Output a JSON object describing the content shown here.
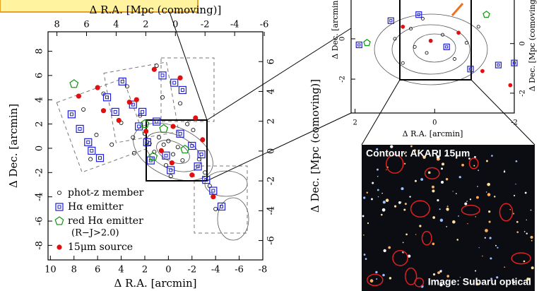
{
  "chart_data": [
    {
      "type": "scatter",
      "xlabel": "Δ R.A. [arcmin]",
      "x2label": "Δ R.A. [Mpc (comoving)]",
      "ylabel": "Δ Dec. [arcmin]",
      "y2label": "Δ Dec. [Mpc (comoving)]",
      "xlim": [
        10.2,
        -8.0
      ],
      "xticks": [
        10,
        8,
        6,
        4,
        2,
        0,
        -2,
        -4,
        -6,
        -8
      ],
      "x2lim": [
        8.6,
        -5.9
      ],
      "x2ticks": [
        8,
        6,
        4,
        2,
        0,
        -2,
        -4,
        -6
      ],
      "ylim": [
        -9.2,
        9.6
      ],
      "yticks": [
        -8,
        -6,
        -4,
        -2,
        0,
        2,
        4,
        6,
        8
      ],
      "y2lim": [
        -7.3,
        8.0
      ],
      "y2ticks": [
        -6,
        -4,
        -2,
        0,
        2,
        4,
        6
      ],
      "legend": "lower left",
      "legend_note": "(R−J>2.0)",
      "series": [
        {
          "name": "phot-z member",
          "color": "#000000",
          "marker": "circle",
          "x": [
            7.2,
            6.1,
            5.5,
            4.8,
            4.0,
            3.5,
            3.0,
            2.4,
            2.0,
            1.6,
            1.2,
            0.8,
            0.4,
            0.0,
            -0.4,
            -0.8,
            -1.2,
            -1.6,
            -2.1,
            -2.6,
            -3.1,
            -3.5,
            -4.0,
            1.0,
            0.5,
            -0.2,
            0.2,
            -1.0,
            6.6,
            2.9
          ],
          "values": [
            3.2,
            1.1,
            4.5,
            0.3,
            2.1,
            5.1,
            0.9,
            2.7,
            1.2,
            0.4,
            -0.3,
            0.9,
            0.3,
            0.6,
            -0.5,
            0.1,
            -1.0,
            2.0,
            1.5,
            -0.9,
            -2.0,
            -3.1,
            -5.0,
            6.8,
            4.2,
            -2.3,
            -1.4,
            3.7,
            -0.9,
            -0.4
          ]
        },
        {
          "name": "Hα emitter",
          "color": "#1f1fd0",
          "marker": "square",
          "x": [
            8.2,
            7.5,
            6.8,
            5.2,
            4.5,
            3.9,
            3.0,
            2.5,
            1.8,
            1.0,
            0.5,
            -0.5,
            -1.2,
            -2.0,
            -2.5,
            -3.2,
            -3.8,
            -4.5,
            0.2,
            1.5,
            -1.0,
            5.8,
            6.5,
            2.2,
            -0.2,
            -2.8
          ],
          "values": [
            2.8,
            1.6,
            0.5,
            4.2,
            3.0,
            5.5,
            3.6,
            1.8,
            0.5,
            2.2,
            6.0,
            5.4,
            4.8,
            0.2,
            -1.5,
            -2.6,
            -3.5,
            -4.8,
            -0.6,
            -1.0,
            1.2,
            -0.8,
            -0.2,
            3.0,
            -1.8,
            -0.5
          ]
        },
        {
          "name": "red Hα emitter",
          "color": "#1a9a1a",
          "marker": "pentagon",
          "x": [
            8.0,
            1.3,
            0.4,
            -1.4,
            2.0
          ],
          "values": [
            5.3,
            -0.7,
            1.6,
            -0.1,
            2.0
          ]
        },
        {
          "name": "15μm source",
          "color": "#e01010",
          "marker": "dot",
          "x": [
            7.6,
            6.0,
            4.2,
            2.7,
            1.2,
            -0.4,
            -1.0,
            -2.3,
            -2.9,
            -3.8,
            0.6,
            1.9,
            3.3,
            -0.3,
            -2.0,
            5.5
          ],
          "values": [
            4.3,
            5.0,
            2.3,
            4.0,
            6.5,
            1.8,
            5.8,
            2.5,
            0.7,
            -4.0,
            -0.2,
            1.4,
            3.8,
            -1.2,
            -2.2,
            3.1
          ]
        }
      ]
    },
    {
      "type": "scatter",
      "xlabel": "Δ R.A. [arcmin]",
      "ylabel": "Δ Dec. [arcmin]",
      "y2label": "Δ Dec. [Mpc (comoving)]",
      "xlim": [
        2.1,
        -2.0
      ],
      "xticks": [
        2,
        0,
        -2
      ],
      "ylim": [
        -3.68,
        2.1
      ],
      "yticks": [
        -2,
        0
      ],
      "y2lim": [
        -2.8,
        1.9
      ],
      "y2ticks": [
        -2,
        0
      ],
      "series": [
        {
          "color": "#000000",
          "marker": "circle",
          "x": [
            1.0,
            0.6,
            0.2,
            -0.2,
            -0.5,
            0.8,
            0.3,
            -0.8,
            -1.1,
            0.5
          ],
          "values": [
            0.0,
            0.5,
            -0.7,
            0.2,
            -1.0,
            -1.2,
            1.0,
            -0.2,
            0.6,
            -0.4
          ]
        },
        {
          "color": "#1f1fd0",
          "marker": "square",
          "x": [
            1.1,
            0.4,
            -0.3,
            -0.9,
            -1.6,
            -2.0,
            1.9
          ],
          "values": [
            0.9,
            1.2,
            -0.4,
            -1.5,
            -1.3,
            -1.2,
            -0.3
          ]
        },
        {
          "color": "#1a9a1a",
          "marker": "pentagon",
          "x": [
            1.7,
            -1.3
          ],
          "values": [
            -0.2,
            1.2
          ]
        },
        {
          "color": "#e01010",
          "marker": "dot",
          "x": [
            0.8,
            0.1,
            -0.6,
            -1.2,
            -1.9
          ],
          "values": [
            0.6,
            -0.1,
            0.3,
            -1.6,
            -2.3
          ]
        }
      ]
    }
  ],
  "image_panel": {
    "top_label": "Contour: AKARI 15μm",
    "bottom_label": "Image: Subaru optical"
  }
}
